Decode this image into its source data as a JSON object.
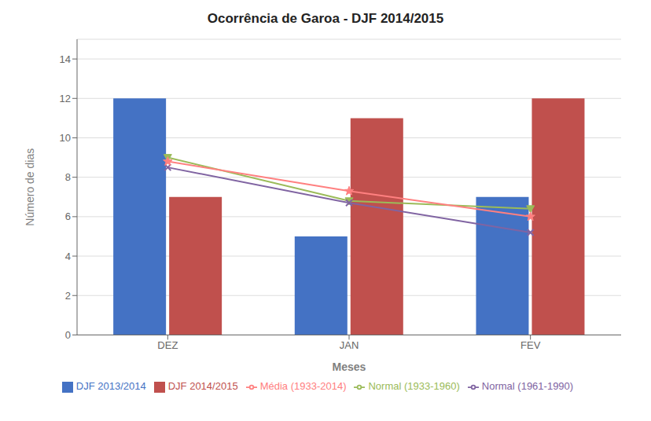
{
  "chart_data": {
    "type": "bar",
    "title": "Ocorrência de Garoa - DJF 2014/2015",
    "xlabel": "Meses",
    "ylabel": "Número de dias",
    "categories": [
      "DEZ",
      "JAN",
      "FEV"
    ],
    "series": [
      {
        "name": "DJF 2013/2014",
        "type": "bar",
        "color": "#4472C4",
        "values": [
          12,
          5,
          7
        ]
      },
      {
        "name": "DJF 2014/2015",
        "type": "bar",
        "color": "#C0504D",
        "values": [
          7,
          11,
          12
        ]
      },
      {
        "name": "Normal (1933-1960)",
        "type": "line",
        "color": "#9BBB59",
        "marker": "triangle-down",
        "values": [
          9.0,
          6.8,
          6.4
        ]
      },
      {
        "name": "Normal (1961-1990)",
        "type": "line",
        "color": "#8064A2",
        "marker": "x",
        "values": [
          8.5,
          6.7,
          5.2
        ]
      },
      {
        "name": "Média (1933-2014)",
        "type": "line",
        "color": "#FF8080",
        "marker": "star",
        "values": [
          8.8,
          7.3,
          6.0
        ]
      }
    ],
    "ylim": [
      0,
      15
    ],
    "yticks": [
      0,
      2,
      4,
      6,
      8,
      10,
      12,
      14
    ],
    "grid": true,
    "legend": "bottom"
  }
}
